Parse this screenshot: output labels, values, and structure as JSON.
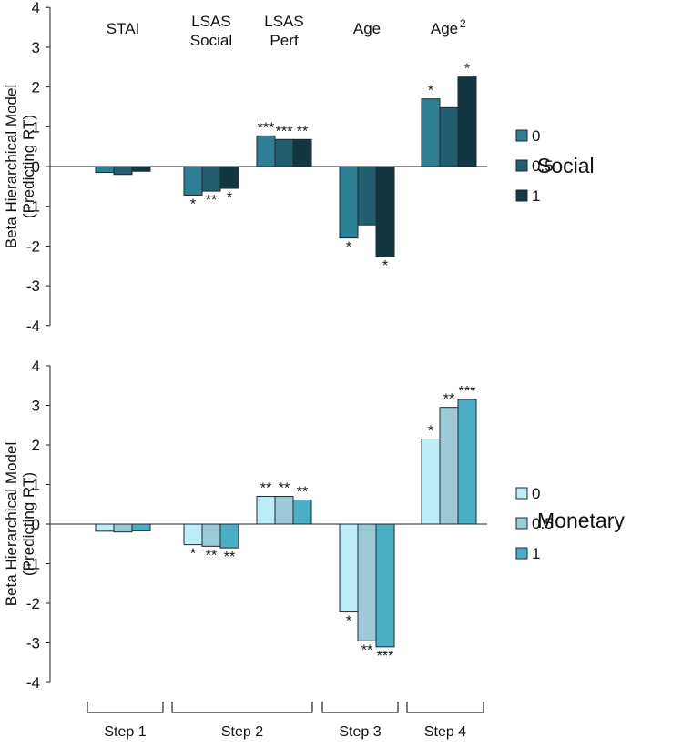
{
  "chart_data": [
    {
      "type": "bar",
      "title": "Social",
      "ylabel_lines": [
        "Beta Hierarchical Model",
        "(Predicting RT)"
      ],
      "ylim": [
        -4,
        4
      ],
      "yticks": [
        -4,
        -3,
        -2,
        -1,
        0,
        1,
        2,
        3,
        4
      ],
      "categories": [
        {
          "lines": [
            "STAI"
          ]
        },
        {
          "lines": [
            "LSAS",
            "Social"
          ]
        },
        {
          "lines": [
            "LSAS",
            "Perf"
          ]
        },
        {
          "lines": [
            "Age"
          ]
        },
        {
          "lines": [
            "Age"
          ],
          "superscript": "2"
        }
      ],
      "series": [
        {
          "name": "0",
          "color": "#2e7f94",
          "values": [
            -0.15,
            -0.72,
            0.77,
            -1.8,
            1.7
          ],
          "significance": [
            "",
            "*",
            "***",
            "*",
            "*"
          ]
        },
        {
          "name": "0.5",
          "color": "#235e6e",
          "values": [
            -0.2,
            -0.62,
            0.68,
            -1.47,
            1.48
          ],
          "significance": [
            "",
            "**",
            "***",
            "",
            ""
          ]
        },
        {
          "name": "1",
          "color": "#133640",
          "values": [
            -0.12,
            -0.55,
            0.68,
            -2.27,
            2.25
          ],
          "significance": [
            "",
            "*",
            "**",
            "*",
            "*"
          ]
        }
      ],
      "legend_title": ""
    },
    {
      "type": "bar",
      "title": "Monetary",
      "ylabel_lines": [
        "Beta Hierarchical Model",
        "(Predicting RT)"
      ],
      "ylim": [
        -4,
        4
      ],
      "yticks": [
        -4,
        -3,
        -2,
        -1,
        0,
        1,
        2,
        3,
        4
      ],
      "categories": [
        {
          "lines": [
            "STAI"
          ]
        },
        {
          "lines": [
            "LSAS",
            "Social"
          ]
        },
        {
          "lines": [
            "LSAS",
            "Perf"
          ]
        },
        {
          "lines": [
            "Age"
          ]
        },
        {
          "lines": [
            "Age"
          ],
          "superscript": "2"
        }
      ],
      "series": [
        {
          "name": "0",
          "color": "#bdeef7",
          "values": [
            -0.18,
            -0.52,
            0.7,
            -2.22,
            2.15
          ],
          "significance": [
            "",
            "*",
            "**",
            "*",
            "*"
          ]
        },
        {
          "name": "0.5",
          "color": "#9ccad6",
          "values": [
            -0.2,
            -0.56,
            0.7,
            -2.95,
            2.95
          ],
          "significance": [
            "",
            "**",
            "**",
            "**",
            "**"
          ]
        },
        {
          "name": "1",
          "color": "#4aaec4",
          "values": [
            -0.17,
            -0.6,
            0.61,
            -3.1,
            3.15
          ],
          "significance": [
            "",
            "**",
            "**",
            "***",
            "***"
          ]
        }
      ]
    }
  ],
  "steps": [
    "Step 1",
    "Step 2",
    "Step 3",
    "Step 4"
  ]
}
